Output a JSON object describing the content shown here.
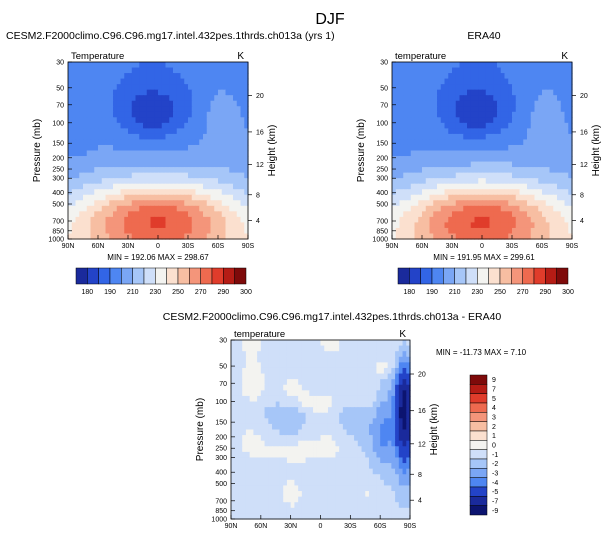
{
  "figure": {
    "title": "DJF"
  },
  "chart_data": [
    {
      "type": "heatmap",
      "title": "CESM2.F2000climo.C96.C96.mg17.intel.432pes.1thrds.ch013a (yrs 1)",
      "variable_label": "Temperature",
      "units": "K",
      "ylabel": "Pressure (mb)",
      "ylabel_right": "Height (km)",
      "x_ticks": [
        "90N",
        "60N",
        "30N",
        "0",
        "30S",
        "60S",
        "90S"
      ],
      "y_ticks": [
        "30",
        "50",
        "70",
        "100",
        "150",
        "200",
        "250",
        "300",
        "400",
        "500",
        "700",
        "850",
        "1000"
      ],
      "height_ticks": [
        "20",
        "16",
        "12",
        "8",
        "4"
      ],
      "stats": "MIN = 192.06   MAX = 298.67",
      "min": 192.06,
      "max": 298.67,
      "colorbar_labels": [
        "180",
        "190",
        "210",
        "230",
        "250",
        "270",
        "290",
        "300"
      ]
    },
    {
      "type": "heatmap",
      "title": "ERA40",
      "variable_label": "temperature",
      "units": "K",
      "ylabel": "Pressure (mb)",
      "ylabel_right": "Height (km)",
      "x_ticks": [
        "90N",
        "60N",
        "30N",
        "0",
        "30S",
        "60S",
        "90S"
      ],
      "y_ticks": [
        "30",
        "50",
        "70",
        "100",
        "150",
        "200",
        "250",
        "300",
        "400",
        "500",
        "700",
        "850",
        "1000"
      ],
      "height_ticks": [
        "20",
        "16",
        "12",
        "8",
        "4"
      ],
      "stats": "MIN = 191.95   MAX = 299.61",
      "min": 191.95,
      "max": 299.61,
      "colorbar_labels": [
        "180",
        "190",
        "210",
        "230",
        "250",
        "270",
        "290",
        "300"
      ]
    },
    {
      "type": "heatmap",
      "title": "CESM2.F2000climo.C96.C96.mg17.intel.432pes.1thrds.ch013a - ERA40",
      "variable_label": "temperature",
      "units": "K",
      "ylabel": "Pressure (mb)",
      "ylabel_right": "Height (km)",
      "x_ticks": [
        "90N",
        "60N",
        "30N",
        "0",
        "30S",
        "60S",
        "90S"
      ],
      "y_ticks": [
        "30",
        "50",
        "70",
        "100",
        "150",
        "200",
        "250",
        "300",
        "400",
        "500",
        "700",
        "850",
        "1000"
      ],
      "height_ticks": [
        "20",
        "16",
        "12",
        "8",
        "4"
      ],
      "stats": "MIN = -11.73  MAX =   7.10",
      "min": -11.73,
      "max": 7.1,
      "colorbar_labels": [
        "9",
        "7",
        "5",
        "4",
        "3",
        "2",
        "1",
        "0",
        "-1",
        "-2",
        "-3",
        "-4",
        "-5",
        "-7",
        "-9"
      ]
    }
  ],
  "colors": {
    "abs_scale": [
      "#1a2a9c",
      "#2343c8",
      "#3265e6",
      "#4e86f2",
      "#7aa6f5",
      "#a6c6f8",
      "#cfdff9",
      "#f3f3f0",
      "#fbe0cf",
      "#f7bea2",
      "#f4957a",
      "#ee6a4f",
      "#e03c2b",
      "#b51c15",
      "#7e0a0a"
    ],
    "diff_scale": [
      "#7e0a0a",
      "#b51c15",
      "#e03c2b",
      "#ee6a4f",
      "#f4957a",
      "#f7bea2",
      "#fbe0cf",
      "#f3f3f0",
      "#cfdff9",
      "#a6c6f8",
      "#7aa6f5",
      "#4e86f2",
      "#2343c8",
      "#1a2a9c",
      "#0c1470"
    ]
  }
}
